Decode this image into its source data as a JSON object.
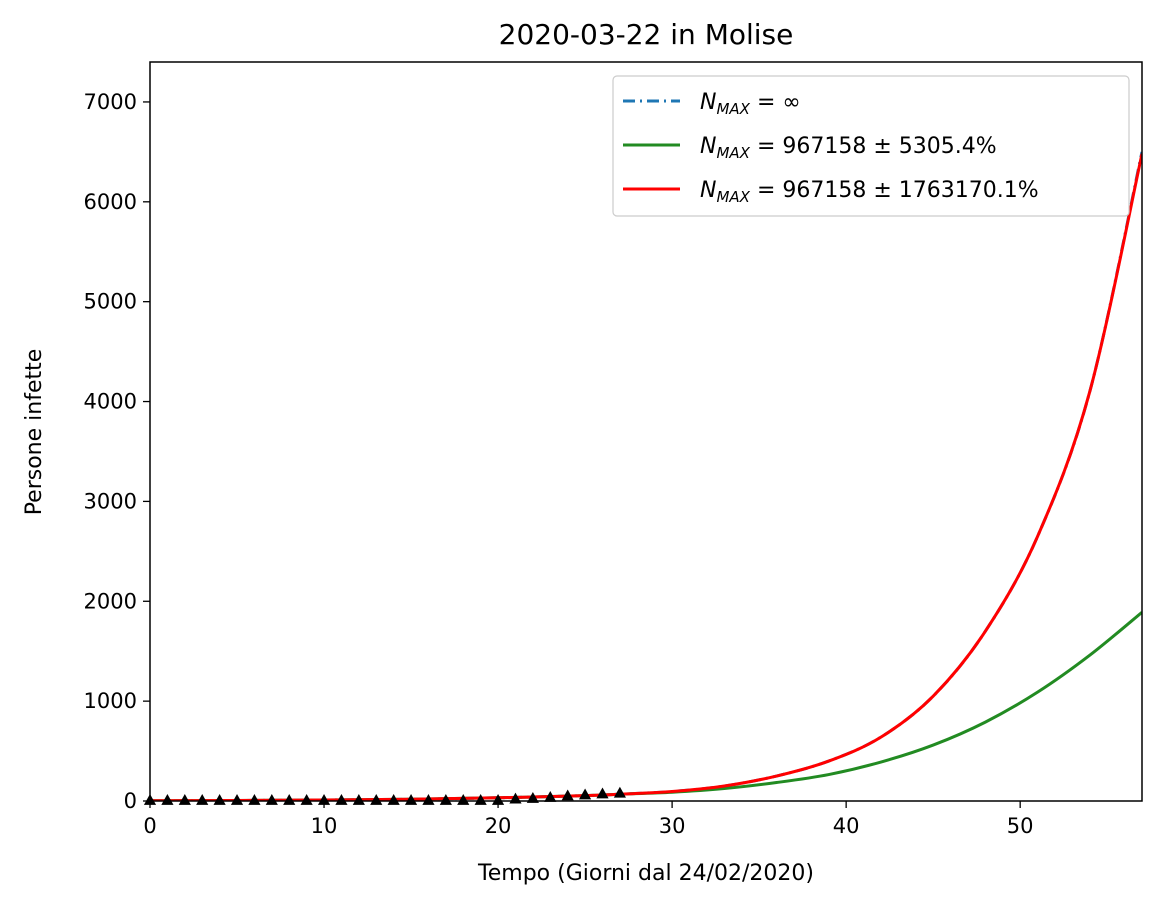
{
  "chart_data": {
    "type": "line",
    "title": "2020-03-22 in Molise",
    "xlabel": "Tempo (Giorni dal 24/02/2020)",
    "ylabel": "Persone infette",
    "xlim": [
      0,
      57
    ],
    "ylim": [
      0,
      7400
    ],
    "xticks": [
      0,
      10,
      20,
      30,
      40,
      50
    ],
    "yticks": [
      0,
      1000,
      2000,
      3000,
      4000,
      5000,
      6000,
      7000
    ],
    "legend_position": "top-right",
    "grid": false,
    "series": [
      {
        "name": "N_MAX = ∞",
        "legend_main": "N",
        "legend_sub": "MAX",
        "legend_rest": " = ∞",
        "color": "#1f77b4",
        "style": "dashdot",
        "x": [
          0,
          5,
          10,
          15,
          20,
          25,
          27,
          30,
          33,
          36,
          39,
          42,
          45,
          48,
          51,
          54,
          57
        ],
        "y": [
          2,
          5,
          10,
          17,
          32,
          54,
          68,
          95,
          150,
          250,
          400,
          640,
          1050,
          1700,
          2650,
          4100,
          6500
        ]
      },
      {
        "name": "N_MAX = 967158 ± 5305.4%",
        "legend_main": "N",
        "legend_sub": "MAX",
        "legend_rest": " = 967158 ± 5305.4%",
        "color": "#228b22",
        "style": "solid",
        "x": [
          0,
          5,
          10,
          15,
          20,
          25,
          27,
          30,
          33,
          36,
          39,
          42,
          45,
          48,
          51,
          54,
          57
        ],
        "y": [
          2,
          5,
          10,
          17,
          32,
          54,
          68,
          88,
          125,
          185,
          265,
          390,
          560,
          790,
          1090,
          1460,
          1890
        ]
      },
      {
        "name": "N_MAX = 967158 ± 1763170.1%",
        "legend_main": "N",
        "legend_sub": "MAX",
        "legend_rest": " = 967158 ± 1763170.1%",
        "color": "#ff0000",
        "style": "solid",
        "x": [
          0,
          5,
          10,
          15,
          20,
          25,
          27,
          30,
          33,
          36,
          39,
          42,
          45,
          48,
          51,
          54,
          57
        ],
        "y": [
          2,
          5,
          10,
          17,
          32,
          54,
          68,
          95,
          150,
          250,
          400,
          640,
          1050,
          1700,
          2650,
          4100,
          6480
        ]
      }
    ],
    "observed": {
      "marker": "triangle",
      "color": "#000000",
      "x": [
        0,
        1,
        2,
        3,
        4,
        5,
        6,
        7,
        8,
        9,
        10,
        11,
        12,
        13,
        14,
        15,
        16,
        17,
        18,
        19,
        20,
        21,
        22,
        23,
        24,
        25,
        26,
        27
      ],
      "y": [
        0,
        0,
        0,
        0,
        0,
        0,
        0,
        0,
        0,
        0,
        0,
        0,
        0,
        0,
        0,
        0,
        0,
        0,
        0,
        0,
        0,
        14,
        20,
        30,
        45,
        55,
        65,
        72
      ]
    }
  }
}
